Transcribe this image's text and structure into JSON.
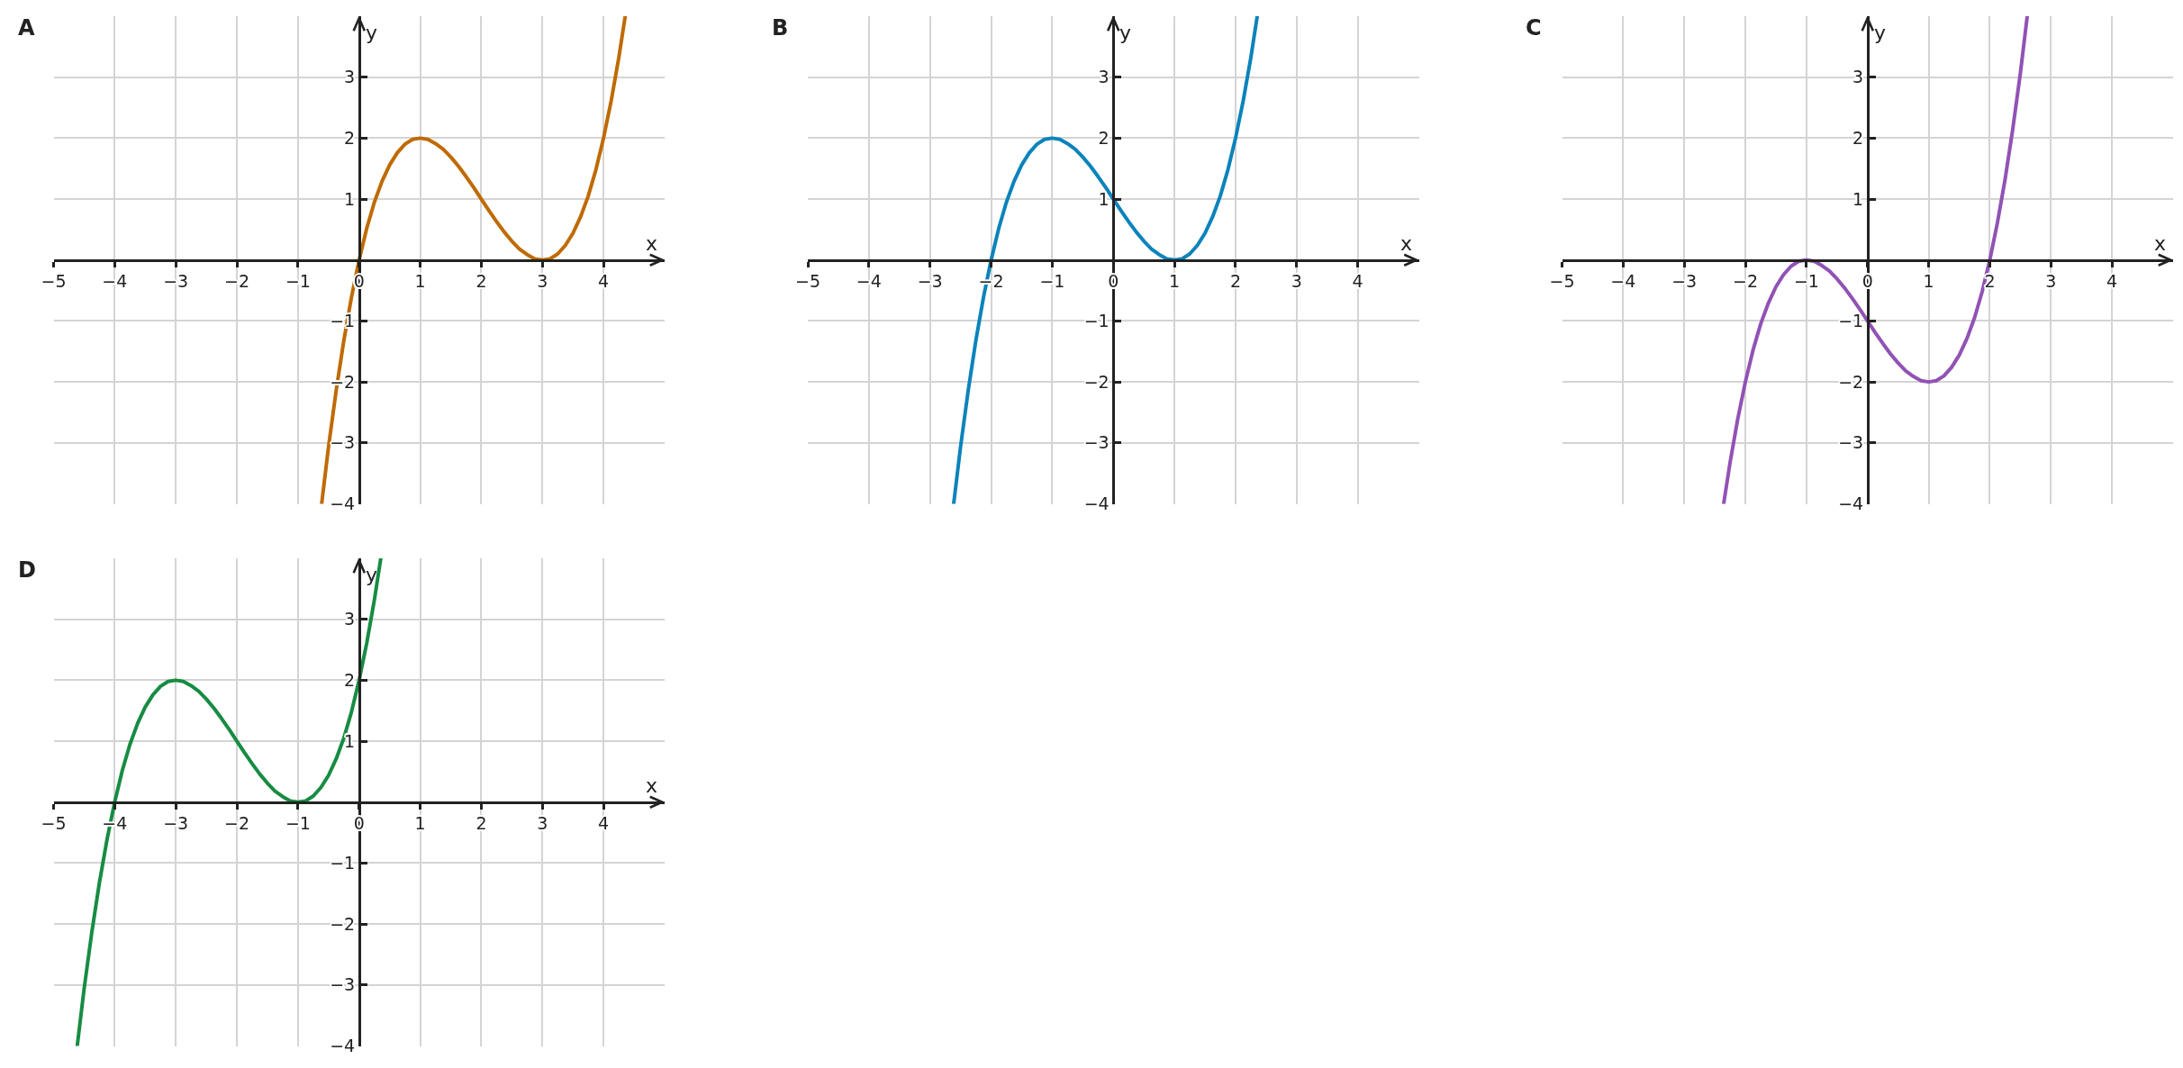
{
  "chart_data": [
    {
      "type": "line",
      "title": "A",
      "xlabel": "x",
      "ylabel": "y",
      "x": [
        -0.613,
        -0.5,
        -0.375,
        -0.25,
        -0.125,
        0,
        0.125,
        0.25,
        0.375,
        0.5,
        0.625,
        0.75,
        0.875,
        1,
        1.125,
        1.25,
        1.375,
        1.5,
        1.625,
        1.75,
        1.875,
        2,
        2.125,
        2.25,
        2.375,
        2.5,
        2.625,
        2.75,
        2.875,
        3,
        3.125,
        3.25,
        3.375,
        3.5,
        3.625,
        3.75,
        3.875,
        4,
        4.125,
        4.25,
        4.355
      ],
      "series": [
        {
          "color": "#bf6a00",
          "values": [
            -4.0,
            -3.06,
            -2.14,
            -1.32,
            -0.61,
            0,
            0.52,
            0.95,
            1.29,
            1.56,
            1.76,
            1.9,
            1.98,
            2,
            1.98,
            1.91,
            1.82,
            1.69,
            1.54,
            1.37,
            1.19,
            1,
            0.81,
            0.63,
            0.46,
            0.31,
            0.18,
            0.09,
            0.02,
            0,
            0.02,
            0.1,
            0.24,
            0.44,
            0.71,
            1.05,
            1.48,
            2,
            2.61,
            3.32,
            4.0
          ]
        }
      ],
      "xlim": [
        -5,
        5
      ],
      "ylim": [
        -4,
        4
      ],
      "xticks": [
        {
          "value": -5,
          "label": "−5"
        },
        {
          "value": -4,
          "label": "−4"
        },
        {
          "value": -3,
          "label": "−3"
        },
        {
          "value": -2,
          "label": "−2"
        },
        {
          "value": -1,
          "label": "−1"
        },
        0,
        1,
        2,
        3,
        4
      ],
      "yticks": [
        {
          "value": -4,
          "label": "−4"
        },
        {
          "value": -3,
          "label": "−3"
        },
        {
          "value": -2,
          "label": "−2"
        },
        {
          "value": -1,
          "label": "−1"
        },
        1,
        2,
        3
      ],
      "grid": true
    },
    {
      "type": "line",
      "title": "B",
      "xlabel": "x",
      "ylabel": "y",
      "x": [
        -2.613,
        -2.5,
        -2.375,
        -2.25,
        -2.125,
        -2,
        -1.875,
        -1.75,
        -1.625,
        -1.5,
        -1.375,
        -1.25,
        -1.125,
        -1,
        -0.875,
        -0.75,
        -0.625,
        -0.5,
        -0.375,
        -0.25,
        -0.125,
        0,
        0.125,
        0.25,
        0.375,
        0.5,
        0.625,
        0.75,
        0.875,
        1,
        1.125,
        1.25,
        1.375,
        1.5,
        1.625,
        1.75,
        1.875,
        2,
        2.125,
        2.25,
        2.355
      ],
      "series": [
        {
          "color": "#0b83bb",
          "values": [
            -4.0,
            -3.06,
            -2.14,
            -1.32,
            -0.61,
            0,
            0.52,
            0.95,
            1.29,
            1.56,
            1.76,
            1.9,
            1.98,
            2,
            1.98,
            1.91,
            1.82,
            1.69,
            1.54,
            1.37,
            1.19,
            1,
            0.81,
            0.63,
            0.46,
            0.31,
            0.18,
            0.09,
            0.02,
            0,
            0.02,
            0.1,
            0.24,
            0.44,
            0.71,
            1.05,
            1.48,
            2,
            2.61,
            3.32,
            4.0
          ]
        }
      ],
      "xlim": [
        -5,
        5
      ],
      "ylim": [
        -4,
        4
      ],
      "xticks": [
        {
          "value": -5,
          "label": "−5"
        },
        {
          "value": -4,
          "label": "−4"
        },
        {
          "value": -3,
          "label": "−3"
        },
        {
          "value": -2,
          "label": "−2"
        },
        {
          "value": -1,
          "label": "−1"
        },
        0,
        1,
        2,
        3,
        4
      ],
      "yticks": [
        {
          "value": -4,
          "label": "−4"
        },
        {
          "value": -3,
          "label": "−3"
        },
        {
          "value": -2,
          "label": "−2"
        },
        {
          "value": -1,
          "label": "−1"
        },
        1,
        2,
        3
      ],
      "grid": true
    },
    {
      "type": "line",
      "title": "C",
      "xlabel": "x",
      "ylabel": "y",
      "x": [
        -2.355,
        -2.25,
        -2.125,
        -2,
        -1.875,
        -1.75,
        -1.625,
        -1.5,
        -1.375,
        -1.25,
        -1.125,
        -1,
        -0.875,
        -0.75,
        -0.625,
        -0.5,
        -0.375,
        -0.25,
        -0.125,
        0,
        0.125,
        0.25,
        0.375,
        0.5,
        0.625,
        0.75,
        0.875,
        1,
        1.125,
        1.25,
        1.375,
        1.5,
        1.625,
        1.75,
        1.875,
        2,
        2.125,
        2.25,
        2.375,
        2.5,
        2.613
      ],
      "series": [
        {
          "color": "#9152b5",
          "values": [
            -4.0,
            -3.32,
            -2.61,
            -2,
            -1.48,
            -1.05,
            -0.71,
            -0.44,
            -0.24,
            -0.1,
            -0.02,
            0,
            -0.02,
            -0.09,
            -0.18,
            -0.31,
            -0.46,
            -0.63,
            -0.81,
            -1,
            -1.19,
            -1.37,
            -1.54,
            -1.69,
            -1.82,
            -1.91,
            -1.98,
            -2,
            -1.98,
            -1.9,
            -1.76,
            -1.56,
            -1.29,
            -0.95,
            -0.52,
            0,
            0.61,
            1.32,
            2.14,
            3.06,
            4.0
          ]
        }
      ],
      "xlim": [
        -5,
        5
      ],
      "ylim": [
        -4,
        4
      ],
      "xticks": [
        {
          "value": -5,
          "label": "−5"
        },
        {
          "value": -4,
          "label": "−4"
        },
        {
          "value": -3,
          "label": "−3"
        },
        {
          "value": -2,
          "label": "−2"
        },
        {
          "value": -1,
          "label": "−1"
        },
        0,
        1,
        2,
        3,
        4
      ],
      "yticks": [
        {
          "value": -4,
          "label": "−4"
        },
        {
          "value": -3,
          "label": "−3"
        },
        {
          "value": -2,
          "label": "−2"
        },
        {
          "value": -1,
          "label": "−1"
        },
        1,
        2,
        3
      ],
      "grid": true
    },
    {
      "type": "line",
      "title": "D",
      "xlabel": "x",
      "ylabel": "y",
      "x": [
        -4.613,
        -4.5,
        -4.375,
        -4.25,
        -4.125,
        -4,
        -3.875,
        -3.75,
        -3.625,
        -3.5,
        -3.375,
        -3.25,
        -3.125,
        -3,
        -2.875,
        -2.75,
        -2.625,
        -2.5,
        -2.375,
        -2.25,
        -2.125,
        -2,
        -1.875,
        -1.75,
        -1.625,
        -1.5,
        -1.375,
        -1.25,
        -1.125,
        -1,
        -0.875,
        -0.75,
        -0.625,
        -0.5,
        -0.375,
        -0.25,
        -0.125,
        0,
        0.125,
        0.25,
        0.355
      ],
      "series": [
        {
          "color": "#168c42",
          "values": [
            -4.0,
            -3.06,
            -2.14,
            -1.32,
            -0.61,
            0,
            0.52,
            0.95,
            1.29,
            1.56,
            1.76,
            1.9,
            1.98,
            2,
            1.98,
            1.91,
            1.82,
            1.69,
            1.54,
            1.37,
            1.19,
            1,
            0.81,
            0.63,
            0.46,
            0.31,
            0.18,
            0.09,
            0.02,
            0,
            0.02,
            0.1,
            0.24,
            0.44,
            0.71,
            1.05,
            1.48,
            2,
            2.61,
            3.32,
            4.0
          ]
        }
      ],
      "xlim": [
        -5,
        5
      ],
      "ylim": [
        -4,
        4
      ],
      "xticks": [
        {
          "value": -5,
          "label": "−5"
        },
        {
          "value": -4,
          "label": "−4"
        },
        {
          "value": -3,
          "label": "−3"
        },
        {
          "value": -2,
          "label": "−2"
        },
        {
          "value": -1,
          "label": "−1"
        },
        0,
        1,
        2,
        3,
        4
      ],
      "yticks": [
        {
          "value": -4,
          "label": "−4"
        },
        {
          "value": -3,
          "label": "−3"
        },
        {
          "value": -2,
          "label": "−2"
        },
        {
          "value": -1,
          "label": "−1"
        },
        1,
        2,
        3
      ],
      "grid": true
    }
  ]
}
